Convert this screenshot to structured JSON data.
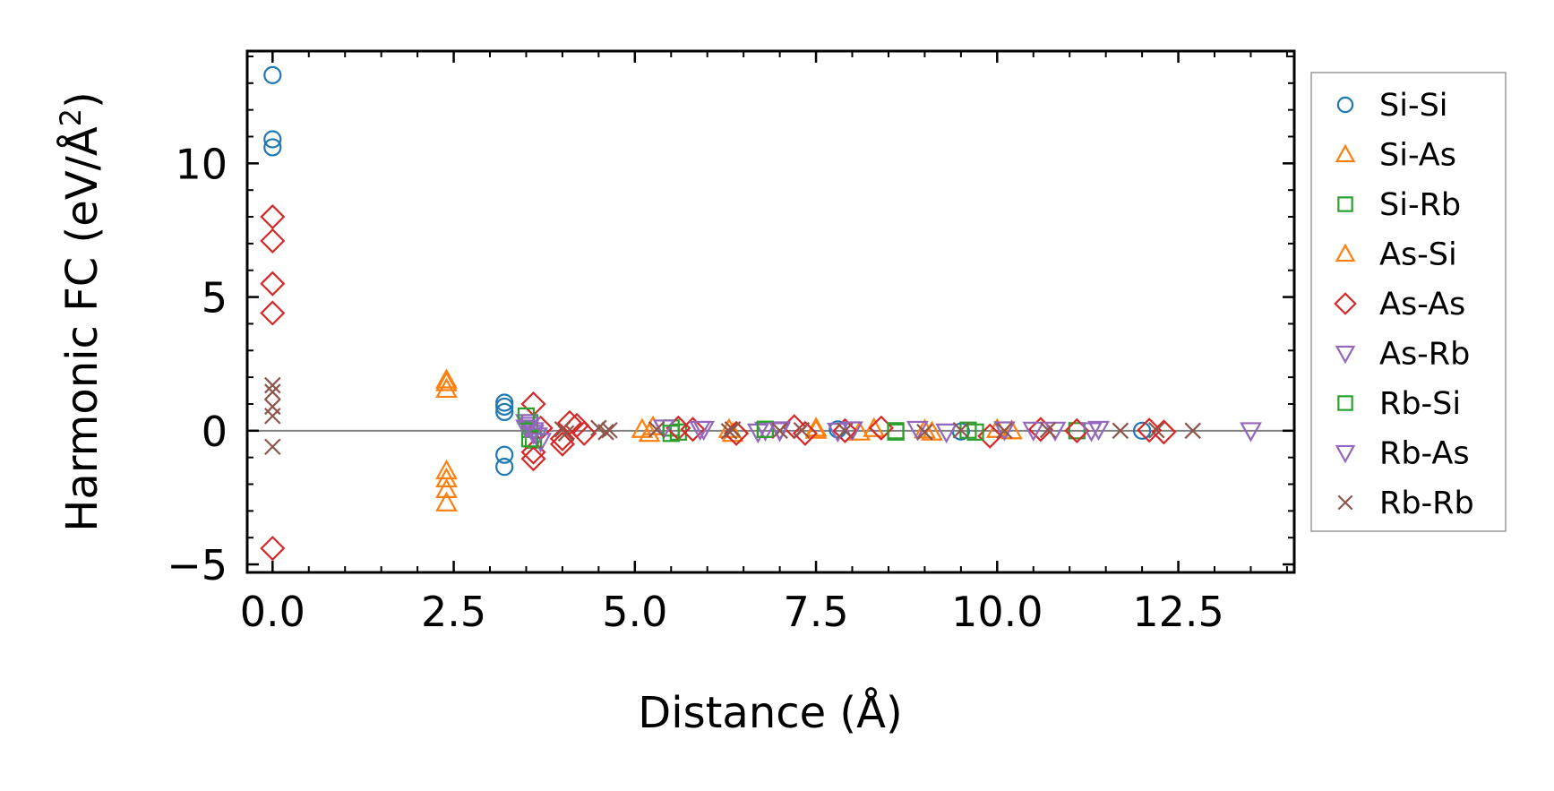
{
  "chart_data": {
    "type": "scatter",
    "title": "",
    "xlabel": "Distance (Å)",
    "ylabel": "Harmonic FC (eV/Å",
    "ylabel_superscript": "2",
    "ylabel_close": ")",
    "xlim": [
      -0.35,
      14.1
    ],
    "ylim": [
      -5.3,
      14.2
    ],
    "xticks": [
      0,
      2.5,
      5,
      7.5,
      10,
      12.5
    ],
    "xtick_labels": [
      "0.0",
      "2.5",
      "5.0",
      "7.5",
      "10.0",
      "12.5"
    ],
    "yticks": [
      -5,
      0,
      5,
      10
    ],
    "ytick_labels": [
      "−5",
      "0",
      "5",
      "10"
    ],
    "zero_line": true,
    "legend_position": "right, outside plot",
    "series": [
      {
        "name": "Si-Si",
        "color": "#1f77b4",
        "marker": "circle",
        "x": [
          0,
          0,
          0,
          3.2,
          3.2,
          3.2,
          3.2,
          3.2,
          7.8,
          9.5,
          12.0
        ],
        "y": [
          13.3,
          10.9,
          10.6,
          1.05,
          0.9,
          0.7,
          -0.9,
          -1.35,
          0.05,
          -0.03,
          0
        ]
      },
      {
        "name": "Si-As",
        "color": "#ff7f0e",
        "marker": "triangle-up",
        "x": [
          2.4,
          2.4,
          2.4,
          2.4,
          2.4,
          2.4,
          2.4,
          5.1,
          5.2,
          6.3,
          7.5,
          8.1,
          9.0,
          10.2
        ],
        "y": [
          1.9,
          1.8,
          1.55,
          -1.5,
          -1.8,
          -2.2,
          -2.7,
          0.05,
          -0.1,
          0.05,
          0.02,
          -0.05,
          0.03,
          0
        ]
      },
      {
        "name": "Si-Rb",
        "color": "#2ca02c",
        "marker": "square",
        "x": [
          3.55,
          3.55,
          3.6,
          5.5,
          5.6,
          6.8,
          8.6,
          9.6,
          11.1
        ],
        "y": [
          0.3,
          0.05,
          -0.35,
          0.1,
          -0.05,
          0.05,
          -0.05,
          0.02,
          0
        ]
      },
      {
        "name": "As-Si",
        "color": "#ff7f0e",
        "marker": "triangle-up",
        "x": [
          5.25,
          6.35,
          7.5,
          8.3,
          9.1,
          10.0
        ],
        "y": [
          0.15,
          -0.1,
          0.1,
          0.08,
          -0.05,
          0.05
        ]
      },
      {
        "name": "As-As",
        "color": "#d62728",
        "marker": "diamond",
        "x": [
          0,
          0,
          0,
          0,
          0,
          3.6,
          3.6,
          3.6,
          3.7,
          4.0,
          4.0,
          4.1,
          4.2,
          4.3,
          5.6,
          5.8,
          6.4,
          7.2,
          7.35,
          7.9,
          8.4,
          9.9,
          10.6,
          11.1,
          12.1,
          12.3
        ],
        "y": [
          8.0,
          7.1,
          5.5,
          4.4,
          -4.4,
          1.0,
          -0.8,
          -1.05,
          0.1,
          -0.3,
          -0.5,
          0.3,
          0.2,
          -0.1,
          0.1,
          0.05,
          -0.1,
          0.15,
          -0.1,
          0,
          0.1,
          -0.2,
          0.05,
          0,
          0.02,
          -0.05
        ]
      },
      {
        "name": "As-Rb",
        "color": "#9467bd",
        "marker": "triangle-down",
        "x": [
          3.5,
          3.55,
          3.6,
          3.65,
          3.7,
          5.4,
          5.9,
          6.7,
          6.8,
          7.0,
          7.8,
          8.9,
          9.3,
          10.1,
          10.8,
          11.3,
          11.4,
          13.5
        ],
        "y": [
          0.3,
          0.2,
          0,
          -0.2,
          -0.4,
          0.1,
          0.05,
          -0.05,
          0.02,
          0.03,
          -0.02,
          0.05,
          -0.05,
          0.03,
          0.02,
          0,
          0.05,
          0
        ]
      },
      {
        "name": "Rb-Si",
        "color": "#2ca02c",
        "marker": "square",
        "x": [
          3.5,
          3.55,
          5.5,
          6.8,
          8.6,
          9.7
        ],
        "y": [
          0.55,
          -0.3,
          -0.1,
          0.05,
          0,
          -0.05
        ]
      },
      {
        "name": "Rb-As",
        "color": "#9467bd",
        "marker": "triangle-down",
        "x": [
          3.5,
          3.6,
          5.95,
          7.0,
          8.0,
          10.5
        ],
        "y": [
          0.1,
          -0.1,
          0.05,
          0,
          0.03,
          0.02
        ]
      },
      {
        "name": "Rb-Rb",
        "color": "#8c564b",
        "marker": "x",
        "x": [
          0,
          0,
          0,
          0,
          0,
          4.0,
          4.05,
          4.5,
          4.6,
          4.65,
          5.3,
          6.3,
          6.35,
          7.0,
          7.3,
          7.9,
          9.0,
          9.5,
          10.1,
          10.7,
          11.7,
          12.2,
          12.7
        ],
        "y": [
          1.7,
          1.45,
          0.9,
          0.55,
          -0.6,
          0.05,
          -0.1,
          0.1,
          -0.05,
          0.02,
          0.05,
          -0.02,
          0.05,
          0,
          0.02,
          0,
          -0.05,
          0.02,
          0,
          0.03,
          0,
          0.02,
          0
        ]
      }
    ]
  }
}
